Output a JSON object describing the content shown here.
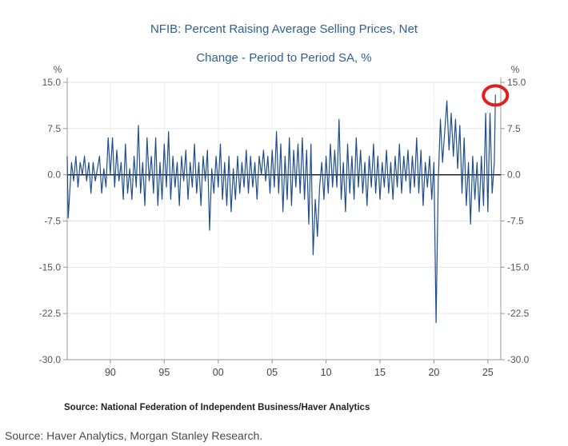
{
  "chart_data": {
    "type": "line",
    "title": "NFIB: Percent Raising Average Selling Prices, Net",
    "subtitle": "Change - Period to Period    SA, %",
    "ylabel_left": "%",
    "ylabel_right": "%",
    "ylim": [
      -30,
      15
    ],
    "yticks": [
      "15.0",
      "7.5",
      "0.0",
      "-7.5",
      "-15.0",
      "-22.5",
      "-30.0"
    ],
    "ytick_values": [
      15,
      7.5,
      0,
      -7.5,
      -15,
      -22.5,
      -30
    ],
    "xlim": [
      1986,
      2026.2
    ],
    "xticks": [
      "90",
      "95",
      "00",
      "05",
      "10",
      "15",
      "20",
      "25"
    ],
    "xtick_values": [
      1990,
      1995,
      2000,
      2005,
      2010,
      2015,
      2020,
      2025
    ],
    "zero_line": true,
    "grid": "horizontal",
    "line_color": "#1f4e8c",
    "highlight_color": "#e02020",
    "highlight_point": {
      "x": 2025.7,
      "y": 13
    },
    "series": [
      {
        "points": [
          [
            1986.0,
            3.0
          ],
          [
            1986.1,
            -7.0
          ],
          [
            1986.4,
            2.0
          ],
          [
            1986.6,
            -1.0
          ],
          [
            1986.8,
            3.0
          ],
          [
            1987.0,
            -2.0
          ],
          [
            1987.2,
            2.0
          ],
          [
            1987.4,
            0.0
          ],
          [
            1987.6,
            3.0
          ],
          [
            1987.8,
            -1.0
          ],
          [
            1988.0,
            2.0
          ],
          [
            1988.2,
            -3.0
          ],
          [
            1988.4,
            2.0
          ],
          [
            1988.6,
            -1.0
          ],
          [
            1988.8,
            1.0
          ],
          [
            1989.0,
            3.0
          ],
          [
            1989.2,
            -3.0
          ],
          [
            1989.4,
            1.0
          ],
          [
            1989.6,
            -2.0
          ],
          [
            1989.8,
            6.0
          ],
          [
            1990.0,
            0.0
          ],
          [
            1990.2,
            6.0
          ],
          [
            1990.4,
            -2.0
          ],
          [
            1990.6,
            4.0
          ],
          [
            1990.8,
            -1.0
          ],
          [
            1991.0,
            2.0
          ],
          [
            1991.2,
            -4.0
          ],
          [
            1991.4,
            5.0
          ],
          [
            1991.6,
            -3.0
          ],
          [
            1991.8,
            1.0
          ],
          [
            1992.0,
            -4.0
          ],
          [
            1992.2,
            3.0
          ],
          [
            1992.4,
            -2.0
          ],
          [
            1992.6,
            8.0
          ],
          [
            1992.8,
            -3.0
          ],
          [
            1993.0,
            2.0
          ],
          [
            1993.2,
            -5.0
          ],
          [
            1993.4,
            6.0
          ],
          [
            1993.6,
            -1.0
          ],
          [
            1993.8,
            3.0
          ],
          [
            1994.0,
            -3.0
          ],
          [
            1994.2,
            6.0
          ],
          [
            1994.4,
            -5.0
          ],
          [
            1994.6,
            2.0
          ],
          [
            1994.8,
            -4.0
          ],
          [
            1995.0,
            5.0
          ],
          [
            1995.2,
            -2.0
          ],
          [
            1995.4,
            7.0
          ],
          [
            1995.6,
            -4.0
          ],
          [
            1995.8,
            3.0
          ],
          [
            1996.0,
            -2.0
          ],
          [
            1996.2,
            2.0
          ],
          [
            1996.4,
            -5.0
          ],
          [
            1996.6,
            3.0
          ],
          [
            1996.8,
            -1.0
          ],
          [
            1997.0,
            4.0
          ],
          [
            1997.2,
            -4.0
          ],
          [
            1997.4,
            2.0
          ],
          [
            1997.6,
            -2.0
          ],
          [
            1997.8,
            5.0
          ],
          [
            1998.0,
            -3.0
          ],
          [
            1998.2,
            2.0
          ],
          [
            1998.4,
            -5.0
          ],
          [
            1998.6,
            3.0
          ],
          [
            1998.8,
            -1.0
          ],
          [
            1999.0,
            4.0
          ],
          [
            1999.2,
            -9.0
          ],
          [
            1999.4,
            1.0
          ],
          [
            1999.6,
            -3.0
          ],
          [
            1999.8,
            3.0
          ],
          [
            2000.0,
            -2.0
          ],
          [
            2000.2,
            5.0
          ],
          [
            2000.4,
            -4.0
          ],
          [
            2000.6,
            2.0
          ],
          [
            2000.8,
            -5.0
          ],
          [
            2001.0,
            3.0
          ],
          [
            2001.2,
            -6.0
          ],
          [
            2001.4,
            1.0
          ],
          [
            2001.6,
            -4.0
          ],
          [
            2001.8,
            3.0
          ],
          [
            2002.0,
            -3.0
          ],
          [
            2002.2,
            2.0
          ],
          [
            2002.4,
            -2.0
          ],
          [
            2002.6,
            4.0
          ],
          [
            2002.8,
            -3.0
          ],
          [
            2003.0,
            3.0
          ],
          [
            2003.2,
            -2.0
          ],
          [
            2003.4,
            2.0
          ],
          [
            2003.6,
            -4.0
          ],
          [
            2003.8,
            3.0
          ],
          [
            2004.0,
            0.0
          ],
          [
            2004.2,
            4.0
          ],
          [
            2004.4,
            -1.0
          ],
          [
            2004.6,
            3.0
          ],
          [
            2004.8,
            -3.0
          ],
          [
            2005.0,
            4.0
          ],
          [
            2005.2,
            -2.0
          ],
          [
            2005.4,
            7.0
          ],
          [
            2005.6,
            -3.0
          ],
          [
            2005.8,
            5.0
          ],
          [
            2006.0,
            -6.0
          ],
          [
            2006.2,
            3.0
          ],
          [
            2006.4,
            -4.0
          ],
          [
            2006.6,
            6.0
          ],
          [
            2006.8,
            -5.0
          ],
          [
            2007.0,
            4.0
          ],
          [
            2007.2,
            -2.0
          ],
          [
            2007.4,
            5.0
          ],
          [
            2007.6,
            -3.0
          ],
          [
            2007.8,
            6.0
          ],
          [
            2008.0,
            -4.0
          ],
          [
            2008.2,
            4.0
          ],
          [
            2008.4,
            -8.0
          ],
          [
            2008.6,
            5.0
          ],
          [
            2008.8,
            -13.0
          ],
          [
            2009.0,
            -4.0
          ],
          [
            2009.2,
            -10.0
          ],
          [
            2009.4,
            -2.0
          ],
          [
            2009.6,
            2.0
          ],
          [
            2009.8,
            -4.0
          ],
          [
            2010.0,
            3.0
          ],
          [
            2010.2,
            -3.0
          ],
          [
            2010.4,
            5.0
          ],
          [
            2010.6,
            -2.0
          ],
          [
            2010.8,
            4.0
          ],
          [
            2011.0,
            -2.0
          ],
          [
            2011.2,
            9.0
          ],
          [
            2011.4,
            -4.0
          ],
          [
            2011.6,
            2.0
          ],
          [
            2011.8,
            -6.0
          ],
          [
            2012.0,
            5.0
          ],
          [
            2012.2,
            -3.0
          ],
          [
            2012.4,
            3.0
          ],
          [
            2012.6,
            -4.0
          ],
          [
            2012.8,
            6.0
          ],
          [
            2013.0,
            -2.0
          ],
          [
            2013.2,
            4.0
          ],
          [
            2013.4,
            -3.0
          ],
          [
            2013.6,
            2.0
          ],
          [
            2013.8,
            -5.0
          ],
          [
            2014.0,
            3.0
          ],
          [
            2014.2,
            -2.0
          ],
          [
            2014.4,
            5.0
          ],
          [
            2014.6,
            -3.0
          ],
          [
            2014.8,
            3.0
          ],
          [
            2015.0,
            -4.0
          ],
          [
            2015.2,
            2.0
          ],
          [
            2015.4,
            -2.0
          ],
          [
            2015.6,
            4.0
          ],
          [
            2015.8,
            -3.0
          ],
          [
            2016.0,
            2.0
          ],
          [
            2016.2,
            -4.0
          ],
          [
            2016.4,
            3.0
          ],
          [
            2016.6,
            -2.0
          ],
          [
            2016.8,
            5.0
          ],
          [
            2017.0,
            -3.0
          ],
          [
            2017.2,
            3.0
          ],
          [
            2017.4,
            -1.0
          ],
          [
            2017.6,
            4.0
          ],
          [
            2017.8,
            -3.0
          ],
          [
            2018.0,
            3.0
          ],
          [
            2018.2,
            -2.0
          ],
          [
            2018.4,
            6.0
          ],
          [
            2018.6,
            -3.0
          ],
          [
            2018.8,
            4.0
          ],
          [
            2019.0,
            -5.0
          ],
          [
            2019.2,
            2.0
          ],
          [
            2019.4,
            -2.0
          ],
          [
            2019.6,
            3.0
          ],
          [
            2019.8,
            -4.0
          ],
          [
            2020.0,
            2.0
          ],
          [
            2020.2,
            -24.0
          ],
          [
            2020.4,
            -1.0
          ],
          [
            2020.6,
            9.0
          ],
          [
            2020.8,
            2.0
          ],
          [
            2021.0,
            7.0
          ],
          [
            2021.2,
            12.0
          ],
          [
            2021.4,
            4.0
          ],
          [
            2021.6,
            10.0
          ],
          [
            2021.8,
            3.0
          ],
          [
            2022.0,
            9.0
          ],
          [
            2022.2,
            1.0
          ],
          [
            2022.4,
            8.0
          ],
          [
            2022.6,
            -3.0
          ],
          [
            2022.8,
            6.0
          ],
          [
            2023.0,
            -5.0
          ],
          [
            2023.2,
            2.0
          ],
          [
            2023.4,
            -8.0
          ],
          [
            2023.6,
            3.0
          ],
          [
            2023.8,
            -4.0
          ],
          [
            2024.0,
            2.0
          ],
          [
            2024.2,
            -6.0
          ],
          [
            2024.4,
            3.0
          ],
          [
            2024.6,
            -5.0
          ],
          [
            2024.8,
            10.0
          ],
          [
            2025.0,
            -6.0
          ],
          [
            2025.2,
            10.0
          ],
          [
            2025.4,
            -3.0
          ],
          [
            2025.6,
            2.0
          ],
          [
            2025.7,
            13.0
          ]
        ]
      }
    ]
  },
  "source_inner": "Source:  National Federation of Independent Business/Haver Analytics",
  "source_outer": "Source: Haver Analytics, Morgan Stanley Research."
}
